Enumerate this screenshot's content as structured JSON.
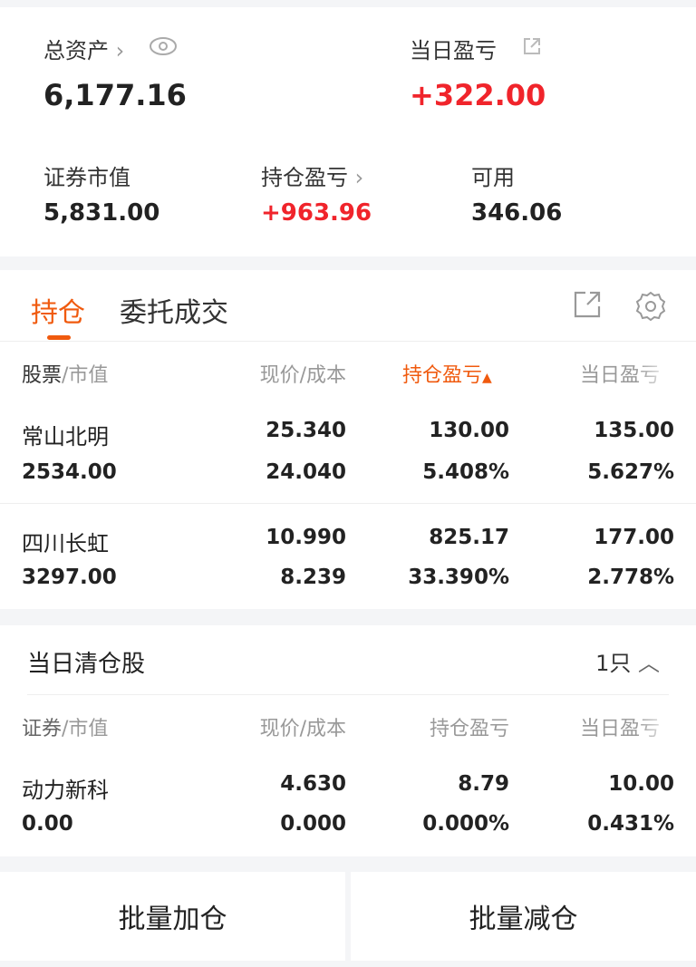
{
  "summary": {
    "total_assets_label": "总资产",
    "total_assets": "6,177.16",
    "daily_pnl_label": "当日盈亏",
    "daily_pnl": "+322.00",
    "market_value_label": "证券市值",
    "market_value": "5,831.00",
    "position_pnl_label": "持仓盈亏",
    "position_pnl": "+963.96",
    "available_label": "可用",
    "available": "346.06"
  },
  "tabs": [
    {
      "label": "持仓",
      "active": true
    },
    {
      "label": "委托成交",
      "active": false
    }
  ],
  "accent": "#f05a0e",
  "holdings": {
    "headers": {
      "stock": "股票",
      "market_value": "/市值",
      "price": "现价/成本",
      "position_pnl": "持仓盈亏",
      "daily_pnl": "当日盈亏"
    },
    "rows": [
      {
        "name": "常山北明",
        "value": "2534.00",
        "price": "25.340",
        "cost": "24.040",
        "pnl": "130.00",
        "pnl_pct": "5.408%",
        "day": "135.00",
        "day_pct": "5.627%"
      },
      {
        "name": "四川长虹",
        "value": "3297.00",
        "price": "10.990",
        "cost": "8.239",
        "pnl": "825.17",
        "pnl_pct": "33.390%",
        "day": "177.00",
        "day_pct": "2.778%"
      }
    ]
  },
  "cleared": {
    "title": "当日清仓股",
    "count": "1只",
    "headers": {
      "stock": "证券",
      "market_value": "/市值",
      "price": "现价/成本",
      "position_pnl": "持仓盈亏",
      "daily_pnl": "当日盈亏"
    },
    "rows": [
      {
        "name": "动力新科",
        "value": "0.00",
        "price": "4.630",
        "cost": "0.000",
        "pnl": "8.79",
        "pnl_pct": "0.000%",
        "day": "10.00",
        "day_pct": "0.431%"
      }
    ]
  },
  "actions": {
    "add": "批量加仓",
    "reduce": "批量减仓"
  }
}
